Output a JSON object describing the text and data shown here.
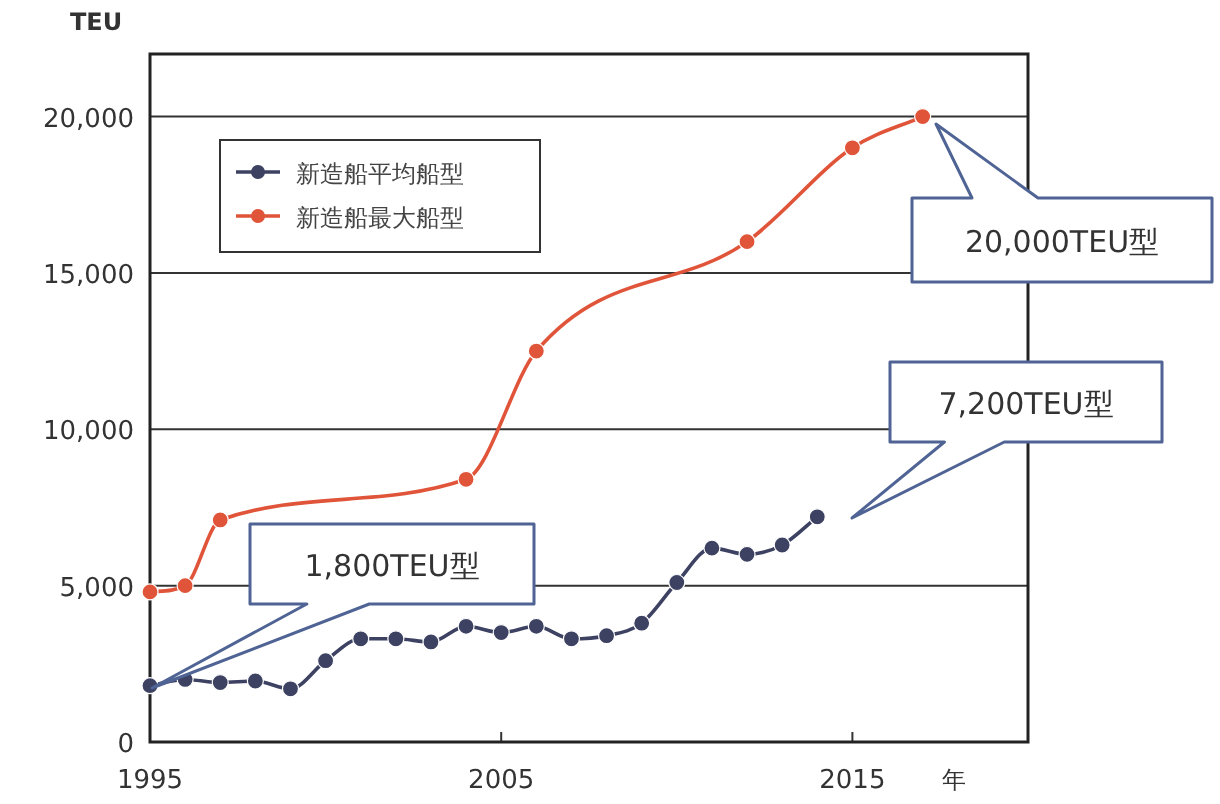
{
  "chart_data": {
    "type": "line",
    "xlabel": "年",
    "ylabel": "TEU",
    "xlim": [
      1995,
      2020
    ],
    "ylim": [
      0,
      22000
    ],
    "xticks": [
      1995,
      2005,
      2015
    ],
    "yticks": [
      {
        "value": 0,
        "label": "0"
      },
      {
        "value": 5000,
        "label": "5,000"
      },
      {
        "value": 10000,
        "label": "10,000"
      },
      {
        "value": 15000,
        "label": "15,000"
      },
      {
        "value": 20000,
        "label": "20,000"
      }
    ],
    "grid": "y",
    "legend": "top left",
    "marker": "circle",
    "series": [
      {
        "name": "新造船平均船型",
        "color": "#3d4262",
        "x": [
          1995,
          1996,
          1997,
          1998,
          1999,
          2000,
          2001,
          2002,
          2003,
          2004,
          2005,
          2006,
          2007,
          2008,
          2009,
          2010,
          2011,
          2012,
          2013,
          2014
        ],
        "values": [
          1800,
          2000,
          1900,
          1950,
          1700,
          2600,
          3300,
          3300,
          3200,
          3700,
          3500,
          3700,
          3300,
          3400,
          3800,
          5100,
          6200,
          6000,
          6300,
          7200
        ]
      },
      {
        "name": "新造船最大船型",
        "color": "#e0553a",
        "x": [
          1995,
          1996,
          1997,
          2004,
          2006,
          2012,
          2015,
          2017
        ],
        "values": [
          4800,
          5000,
          7100,
          8400,
          12500,
          16000,
          19000,
          20000
        ]
      }
    ],
    "annotations": [
      "1,800TEU型",
      "7,200TEU型",
      "20,000TEU型"
    ]
  }
}
